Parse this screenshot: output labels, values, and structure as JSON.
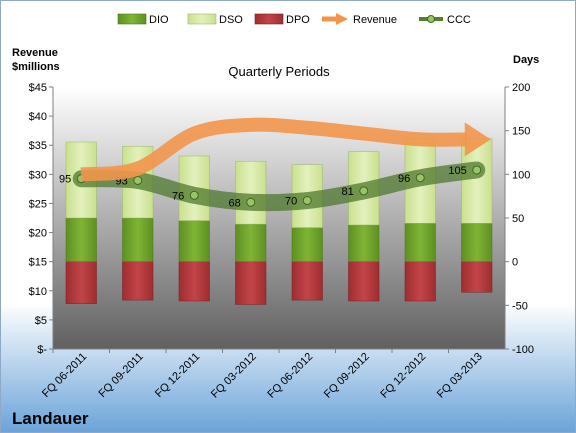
{
  "chart_data": {
    "type": "bar",
    "title": "Quarterly Periods",
    "company": "Landauer",
    "y_left_label": [
      "Revenue",
      "$millions"
    ],
    "y_right_label": "Days",
    "categories": [
      "FQ 06-2011",
      "FQ 09-2011",
      "FQ 12-2011",
      "FQ 03-2012",
      "FQ 06-2012",
      "FQ 09-2012",
      "FQ 12-2012",
      "FQ 03-2013"
    ],
    "y_left": {
      "min": 0,
      "max": 45,
      "step": 5,
      "tick_labels": [
        "$-",
        "$5",
        "$10",
        "$15",
        "$20",
        "$25",
        "$30",
        "$35",
        "$40",
        "$45"
      ]
    },
    "y_right": {
      "min": -100,
      "max": 200,
      "step": 50,
      "tick_labels": [
        "-100",
        "-50",
        "0",
        "50",
        "100",
        "150",
        "200"
      ]
    },
    "legend": {
      "position": "top",
      "items": [
        {
          "name": "DIO",
          "kind": "bar",
          "color": "#72a72c"
        },
        {
          "name": "DSO",
          "kind": "bar",
          "color": "#dcedb0"
        },
        {
          "name": "DPO",
          "kind": "bar",
          "color": "#b83a3d"
        },
        {
          "name": "Revenue",
          "kind": "arrow",
          "color": "#f2954b"
        },
        {
          "name": "CCC",
          "kind": "line-marker",
          "color": "#557f2b"
        }
      ]
    },
    "series": [
      {
        "name": "DIO",
        "axis": "right",
        "values": [
          50,
          50,
          47,
          43,
          39,
          42,
          44,
          44
        ]
      },
      {
        "name": "DSO",
        "axis": "right",
        "values": [
          87,
          82,
          74,
          72,
          72,
          84,
          97,
          97
        ]
      },
      {
        "name": "DPO",
        "axis": "right",
        "values": [
          -48,
          -44,
          -45,
          -49,
          -44,
          -45,
          -45,
          -35
        ]
      },
      {
        "name": "CCC",
        "axis": "right",
        "values": [
          95,
          93,
          76,
          68,
          70,
          81,
          96,
          105
        ],
        "labels": [
          "95",
          "93",
          "76",
          "68",
          "70",
          "81",
          "96",
          "105"
        ]
      },
      {
        "name": "Revenue",
        "axis": "left",
        "values": [
          30,
          31,
          37,
          38.5,
          38,
          37,
          36,
          36
        ]
      }
    ],
    "grid": false
  }
}
